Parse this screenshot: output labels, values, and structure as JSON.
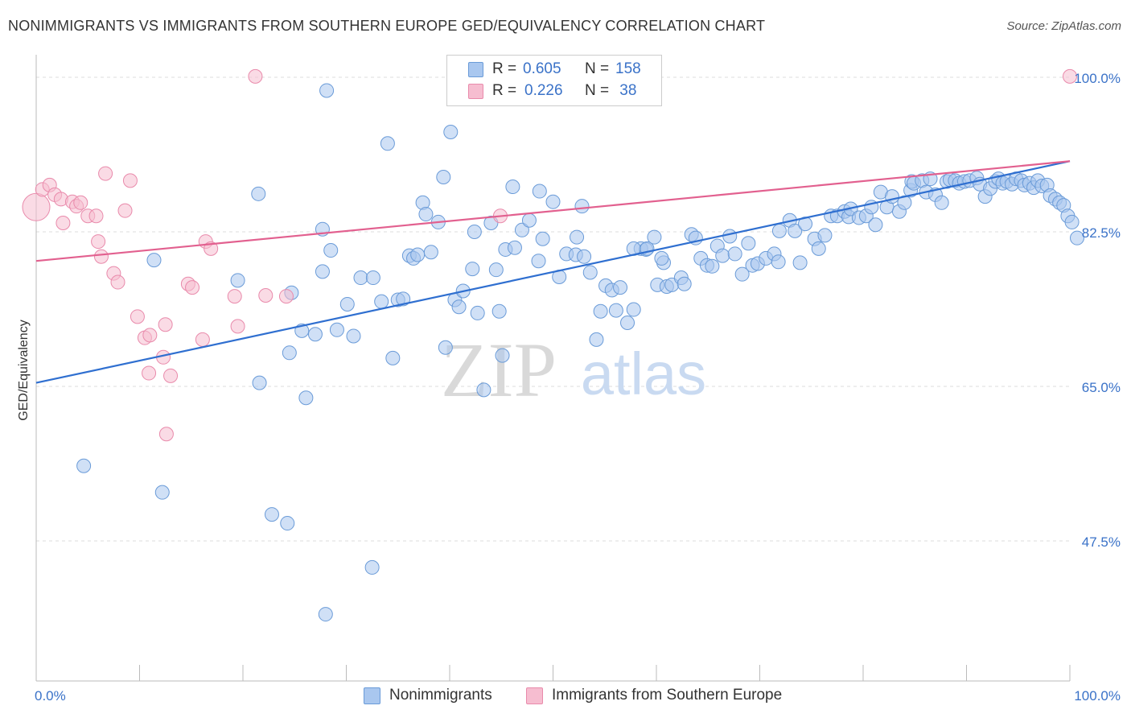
{
  "title": "NONIMMIGRANTS VS IMMIGRANTS FROM SOUTHERN EUROPE GED/EQUIVALENCY CORRELATION CHART",
  "source": "Source: ZipAtlas.com",
  "watermark": {
    "zip": "ZIP",
    "atlas": "atlas"
  },
  "legend": {
    "r_label": "R =",
    "n_label": "N =",
    "series1": {
      "r": "0.605",
      "n": "158"
    },
    "series2": {
      "r": "0.226",
      "n": " 38"
    }
  },
  "bottom_legend": {
    "series1": "Nonimmigrants",
    "series2": "Immigrants from Southern Europe"
  },
  "colors": {
    "blue_fill": "#a9c7ef",
    "blue_stroke": "#6a9bd8",
    "blue_line": "#2f6fd0",
    "pink_fill": "#f6bdd0",
    "pink_stroke": "#e98aab",
    "pink_line": "#e2608f",
    "tick_text": "#3a72c8",
    "grid": "#dddddd"
  },
  "chart_data": {
    "type": "scatter",
    "title": "NONIMMIGRANTS VS IMMIGRANTS FROM SOUTHERN EUROPE GED/EQUIVALENCY CORRELATION CHART",
    "xlabel": "",
    "ylabel": "GED/Equivalency",
    "xlim": [
      0,
      100
    ],
    "ylim": [
      31.5,
      102
    ],
    "x_tick_labels": [
      "0.0%",
      "100.0%"
    ],
    "y_ticks": [
      100.0,
      82.5,
      65.0,
      47.5
    ],
    "y_tick_labels": [
      "100.0%",
      "82.5%",
      "65.0%",
      "47.5%"
    ],
    "grid": "horizontal dashed",
    "legend_placement": "top-center",
    "series": [
      {
        "name": "Nonimmigrants",
        "r": 0.605,
        "n": 158,
        "trend": [
          [
            0,
            65.4
          ],
          [
            100,
            90.5
          ]
        ],
        "points": [
          [
            4.6,
            56.0
          ],
          [
            12.2,
            53.0
          ],
          [
            11.4,
            79.3
          ],
          [
            19.5,
            77.0
          ],
          [
            21.5,
            86.8
          ],
          [
            21.6,
            65.4
          ],
          [
            22.8,
            50.5
          ],
          [
            24.3,
            49.5
          ],
          [
            24.5,
            68.8
          ],
          [
            24.7,
            75.6
          ],
          [
            25.7,
            71.3
          ],
          [
            26.1,
            63.7
          ],
          [
            27.0,
            70.9
          ],
          [
            27.7,
            78.0
          ],
          [
            27.7,
            82.8
          ],
          [
            28.0,
            39.2
          ],
          [
            28.1,
            98.5
          ],
          [
            28.5,
            80.4
          ],
          [
            29.1,
            71.4
          ],
          [
            30.1,
            74.3
          ],
          [
            30.7,
            70.7
          ],
          [
            31.4,
            77.3
          ],
          [
            32.5,
            44.5
          ],
          [
            32.6,
            77.3
          ],
          [
            33.4,
            74.6
          ],
          [
            34.0,
            92.5
          ],
          [
            34.5,
            68.2
          ],
          [
            35.0,
            74.8
          ],
          [
            35.5,
            74.9
          ],
          [
            36.1,
            79.8
          ],
          [
            36.5,
            79.5
          ],
          [
            37.4,
            85.8
          ],
          [
            37.7,
            84.5
          ],
          [
            38.2,
            80.2
          ],
          [
            38.9,
            83.6
          ],
          [
            39.4,
            88.7
          ],
          [
            39.6,
            69.4
          ],
          [
            40.1,
            93.8
          ],
          [
            40.5,
            74.8
          ],
          [
            40.9,
            74.0
          ],
          [
            41.3,
            75.8
          ],
          [
            42.2,
            78.3
          ],
          [
            42.4,
            82.5
          ],
          [
            42.7,
            73.3
          ],
          [
            43.3,
            64.6
          ],
          [
            44.0,
            83.5
          ],
          [
            44.5,
            78.2
          ],
          [
            44.8,
            73.5
          ],
          [
            45.1,
            68.5
          ],
          [
            45.4,
            80.5
          ],
          [
            46.1,
            87.6
          ],
          [
            47.0,
            82.7
          ],
          [
            47.7,
            83.8
          ],
          [
            48.7,
            87.1
          ],
          [
            48.6,
            79.2
          ],
          [
            49.0,
            81.7
          ],
          [
            50.0,
            85.9
          ],
          [
            50.6,
            77.4
          ],
          [
            51.3,
            80.0
          ],
          [
            52.2,
            79.9
          ],
          [
            52.3,
            81.9
          ],
          [
            53.0,
            79.7
          ],
          [
            53.6,
            77.9
          ],
          [
            54.2,
            70.3
          ],
          [
            54.6,
            73.5
          ],
          [
            55.1,
            76.4
          ],
          [
            55.7,
            75.9
          ],
          [
            56.1,
            73.6
          ],
          [
            56.5,
            76.2
          ],
          [
            57.2,
            72.2
          ],
          [
            57.8,
            73.7
          ],
          [
            58.5,
            80.6
          ],
          [
            59.0,
            80.5
          ],
          [
            59.1,
            80.6
          ],
          [
            59.8,
            81.9
          ],
          [
            60.1,
            76.5
          ],
          [
            60.7,
            79.0
          ],
          [
            61.0,
            76.3
          ],
          [
            61.5,
            76.5
          ],
          [
            62.4,
            77.3
          ],
          [
            62.7,
            76.6
          ],
          [
            63.4,
            82.2
          ],
          [
            63.8,
            81.8
          ],
          [
            64.3,
            79.5
          ],
          [
            64.9,
            78.7
          ],
          [
            65.4,
            78.6
          ],
          [
            65.9,
            80.9
          ],
          [
            66.4,
            79.8
          ],
          [
            67.1,
            82.0
          ],
          [
            67.6,
            80.0
          ],
          [
            68.3,
            77.7
          ],
          [
            68.9,
            81.2
          ],
          [
            69.3,
            78.7
          ],
          [
            69.8,
            78.9
          ],
          [
            70.6,
            79.5
          ],
          [
            71.4,
            80.0
          ],
          [
            71.8,
            79.1
          ],
          [
            72.9,
            83.8
          ],
          [
            73.4,
            82.6
          ],
          [
            73.9,
            79.0
          ],
          [
            74.4,
            83.4
          ],
          [
            75.3,
            81.7
          ],
          [
            75.7,
            80.6
          ],
          [
            76.3,
            82.1
          ],
          [
            76.9,
            84.3
          ],
          [
            77.5,
            84.3
          ],
          [
            78.2,
            84.8
          ],
          [
            78.6,
            84.2
          ],
          [
            78.8,
            85.1
          ],
          [
            79.6,
            84.1
          ],
          [
            80.3,
            84.3
          ],
          [
            80.8,
            85.3
          ],
          [
            81.2,
            83.3
          ],
          [
            81.7,
            87.0
          ],
          [
            82.3,
            85.3
          ],
          [
            82.8,
            86.5
          ],
          [
            83.5,
            84.8
          ],
          [
            84.0,
            85.8
          ],
          [
            84.6,
            87.2
          ],
          [
            84.7,
            88.2
          ],
          [
            84.9,
            88.0
          ],
          [
            85.7,
            88.3
          ],
          [
            86.5,
            88.5
          ],
          [
            86.1,
            87.0
          ],
          [
            87.0,
            86.7
          ],
          [
            87.6,
            85.8
          ],
          [
            88.1,
            88.2
          ],
          [
            88.4,
            88.4
          ],
          [
            88.9,
            88.3
          ],
          [
            89.3,
            88.0
          ],
          [
            89.8,
            88.2
          ],
          [
            90.3,
            88.3
          ],
          [
            91.0,
            88.6
          ],
          [
            91.3,
            87.9
          ],
          [
            91.8,
            86.5
          ],
          [
            92.3,
            87.4
          ],
          [
            92.8,
            88.2
          ],
          [
            93.1,
            88.5
          ],
          [
            93.5,
            88.0
          ],
          [
            93.9,
            88.2
          ],
          [
            94.4,
            87.9
          ],
          [
            94.8,
            88.5
          ],
          [
            95.3,
            88.3
          ],
          [
            95.6,
            87.8
          ],
          [
            96.1,
            88.0
          ],
          [
            96.5,
            87.5
          ],
          [
            96.9,
            88.3
          ],
          [
            97.3,
            87.7
          ],
          [
            97.8,
            87.8
          ],
          [
            98.1,
            86.6
          ],
          [
            98.6,
            86.2
          ],
          [
            99.0,
            85.8
          ],
          [
            99.4,
            85.5
          ],
          [
            99.8,
            84.3
          ],
          [
            100.2,
            83.6
          ],
          [
            100.7,
            81.8
          ],
          [
            36.9,
            79.9
          ],
          [
            46.3,
            80.7
          ],
          [
            52.8,
            85.4
          ],
          [
            57.8,
            80.6
          ],
          [
            60.5,
            79.5
          ],
          [
            71.9,
            82.6
          ]
        ]
      },
      {
        "name": "Immigrants from Southern Europe",
        "r": 0.226,
        "n": 38,
        "trend": [
          [
            0,
            79.2
          ],
          [
            100,
            90.5
          ]
        ],
        "points": [
          [
            0.0,
            85.3
          ],
          [
            0.6,
            87.3
          ],
          [
            1.3,
            87.8
          ],
          [
            1.8,
            86.7
          ],
          [
            2.4,
            86.2
          ],
          [
            2.6,
            83.5
          ],
          [
            3.5,
            85.9
          ],
          [
            3.9,
            85.4
          ],
          [
            4.3,
            85.8
          ],
          [
            5.0,
            84.3
          ],
          [
            5.8,
            84.3
          ],
          [
            6.0,
            81.4
          ],
          [
            6.3,
            79.7
          ],
          [
            6.7,
            89.1
          ],
          [
            7.5,
            77.8
          ],
          [
            7.9,
            76.8
          ],
          [
            8.6,
            84.9
          ],
          [
            9.1,
            88.3
          ],
          [
            9.8,
            72.9
          ],
          [
            10.5,
            70.5
          ],
          [
            10.9,
            66.5
          ],
          [
            11.0,
            70.8
          ],
          [
            12.3,
            68.3
          ],
          [
            12.5,
            72.0
          ],
          [
            12.6,
            59.6
          ],
          [
            13.0,
            66.2
          ],
          [
            14.7,
            76.6
          ],
          [
            15.1,
            76.2
          ],
          [
            16.1,
            70.3
          ],
          [
            16.4,
            81.4
          ],
          [
            16.9,
            80.6
          ],
          [
            19.2,
            75.2
          ],
          [
            19.5,
            71.8
          ],
          [
            21.2,
            100.1
          ],
          [
            22.2,
            75.3
          ],
          [
            24.2,
            75.2
          ],
          [
            44.9,
            84.3
          ],
          [
            100.0,
            100.1
          ]
        ]
      }
    ]
  }
}
